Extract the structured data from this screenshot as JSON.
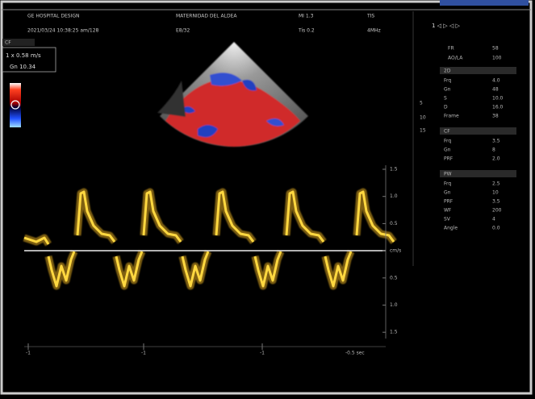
{
  "header": {
    "row1": [
      "GE HOSPITAL DESIGN",
      "MATERNIDAD DEL ALDEA",
      "MI 1.3",
      "TIS"
    ],
    "row2": [
      "2021/03/24 10:38:25 am/128",
      "E8/32",
      "Tis 0.2",
      "4MHz"
    ]
  },
  "left_panel": {
    "mode": "CF",
    "scale": "1 x 0.58 m/s",
    "gain": "Gn 10.34"
  },
  "depth_marks": [
    "5",
    "10",
    "15"
  ],
  "doppler_scale": [
    "1.5",
    "1.0",
    "0.5",
    "cm/s",
    "0.5",
    "1.0",
    "1.5"
  ],
  "time_axis": {
    "ticks": [
      "-1",
      "-1",
      "-1"
    ],
    "unit": "-0.5 sec"
  },
  "right_panel": {
    "top_icons": "1 ◁ ▷ ◁ ▷",
    "summary": [
      [
        "FR",
        "58"
      ],
      [
        "AO/LA",
        "100"
      ]
    ],
    "sections": [
      {
        "title": "2D",
        "rows": [
          [
            "Frq",
            "4.0"
          ],
          [
            "Gn",
            "48"
          ],
          [
            "S",
            "10.0"
          ],
          [
            "D",
            "16.0"
          ],
          [
            "Frame",
            "38"
          ]
        ]
      },
      {
        "title": "CF",
        "rows": [
          [
            "Frq",
            "3.5"
          ],
          [
            "Gn",
            "8"
          ],
          [
            "PRF",
            "2.0"
          ]
        ]
      },
      {
        "title": "PW",
        "rows": [
          [
            "Frq",
            "2.5"
          ],
          [
            "Gn",
            "10"
          ],
          [
            "PRF",
            "3.5"
          ],
          [
            "WF",
            "200"
          ],
          [
            "SV",
            "4"
          ],
          [
            "Angle",
            "0.0"
          ]
        ]
      }
    ]
  }
}
